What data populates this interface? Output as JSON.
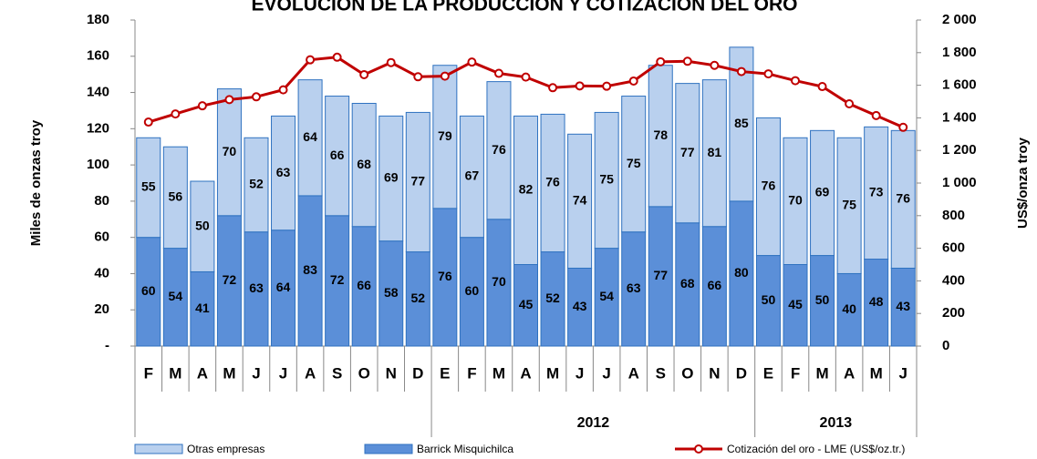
{
  "chart_data": {
    "type": "bar",
    "title": "EVOLUCIÓN DE LA PRODUCCIÓN Y COTIZACIÓN DEL ORO",
    "y_label": "Miles de onzas troy",
    "y2_label": "US$/onza troy",
    "categories": [
      "F",
      "M",
      "A",
      "M",
      "J",
      "J",
      "A",
      "S",
      "O",
      "N",
      "D",
      "E",
      "F",
      "M",
      "A",
      "M",
      "J",
      "J",
      "A",
      "S",
      "O",
      "N",
      "D",
      "E",
      "F",
      "M",
      "A",
      "M",
      "J"
    ],
    "category_groups": [
      {
        "label": null,
        "size": 11
      },
      {
        "label": "2012",
        "size": 12
      },
      {
        "label": "2013",
        "size": 6
      }
    ],
    "stacked": true,
    "series": [
      {
        "name": "Barrick Misquichilca",
        "color": "#5b8fd8",
        "values": [
          60,
          54,
          41,
          72,
          63,
          64,
          83,
          72,
          66,
          58,
          52,
          76,
          60,
          70,
          45,
          52,
          43,
          54,
          63,
          77,
          68,
          66,
          80,
          50,
          45,
          50,
          40,
          48,
          43
        ]
      },
      {
        "name": "Otras empresas",
        "color": "#b9d0ee",
        "values": [
          55,
          56,
          50,
          70,
          52,
          63,
          64,
          66,
          68,
          69,
          77,
          79,
          67,
          76,
          82,
          76,
          74,
          75,
          75,
          78,
          77,
          81,
          85,
          76,
          70,
          69,
          75,
          73,
          76
        ]
      },
      {
        "name": "Cotización del oro - LME (US$/oz.tr.)",
        "color": "#c00000",
        "type": "line",
        "axis": "y2",
        "values": [
          1374,
          1424,
          1474,
          1512,
          1529,
          1572,
          1756,
          1772,
          1665,
          1739,
          1652,
          1656,
          1742,
          1673,
          1650,
          1585,
          1596,
          1594,
          1626,
          1744,
          1747,
          1722,
          1684,
          1670,
          1628,
          1592,
          1486,
          1414,
          1342
        ]
      }
    ],
    "ylim": [
      0,
      180
    ],
    "yticks": [
      {
        "value": 0,
        "label": "-"
      },
      20,
      40,
      60,
      80,
      100,
      120,
      140,
      160,
      180
    ],
    "y2lim": [
      0,
      2000
    ],
    "y2ticks": [
      0,
      200,
      400,
      600,
      800,
      {
        "value": 1000,
        "label": "1 000"
      },
      {
        "value": 1200,
        "label": "1 200"
      },
      {
        "value": 1400,
        "label": "1 400"
      },
      {
        "value": 1600,
        "label": "1 600"
      },
      {
        "value": 1800,
        "label": "1 800"
      },
      {
        "value": 2000,
        "label": "2 000"
      }
    ],
    "legend": "bottom"
  }
}
